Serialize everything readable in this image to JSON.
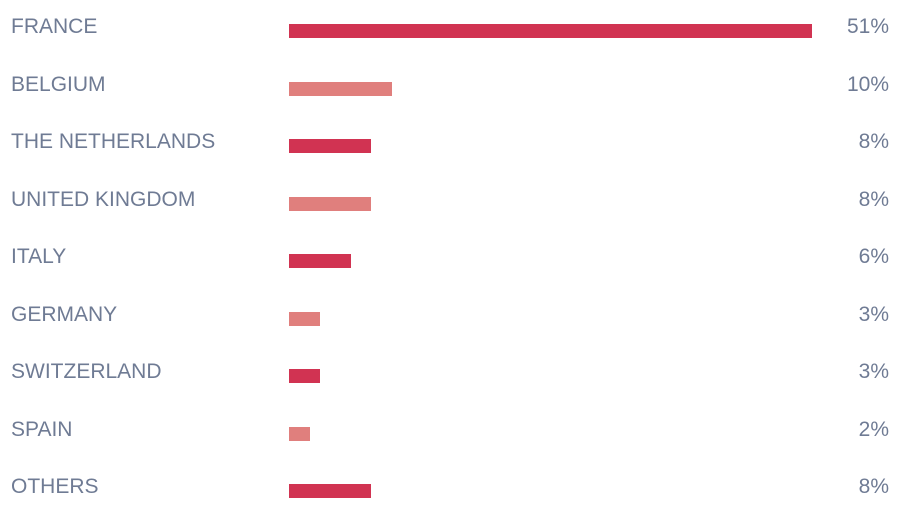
{
  "colors": {
    "primary_bar": "#d13352",
    "secondary_bar": "#e07f7d",
    "text": "#6f7b94"
  },
  "chart_data": {
    "type": "bar",
    "orientation": "horizontal",
    "title": "",
    "xlabel": "",
    "ylabel": "",
    "xlim": [
      0,
      51
    ],
    "grid": false,
    "legend": "none",
    "value_suffix": "%",
    "categories": [
      "FRANCE",
      "BELGIUM",
      "THE NETHERLANDS",
      "UNITED KINGDOM",
      "ITALY",
      "GERMANY",
      "SWITZERLAND",
      "SPAIN",
      "OTHERS"
    ],
    "values": [
      51,
      10,
      8,
      8,
      6,
      3,
      3,
      2,
      8
    ],
    "value_labels": [
      "51%",
      "10%",
      "8%",
      "8%",
      "6%",
      "3%",
      "3%",
      "2%",
      "8%"
    ],
    "bar_colors": [
      "#d13352",
      "#e07f7d",
      "#d13352",
      "#e07f7d",
      "#d13352",
      "#e07f7d",
      "#d13352",
      "#e07f7d",
      "#d13352"
    ]
  }
}
